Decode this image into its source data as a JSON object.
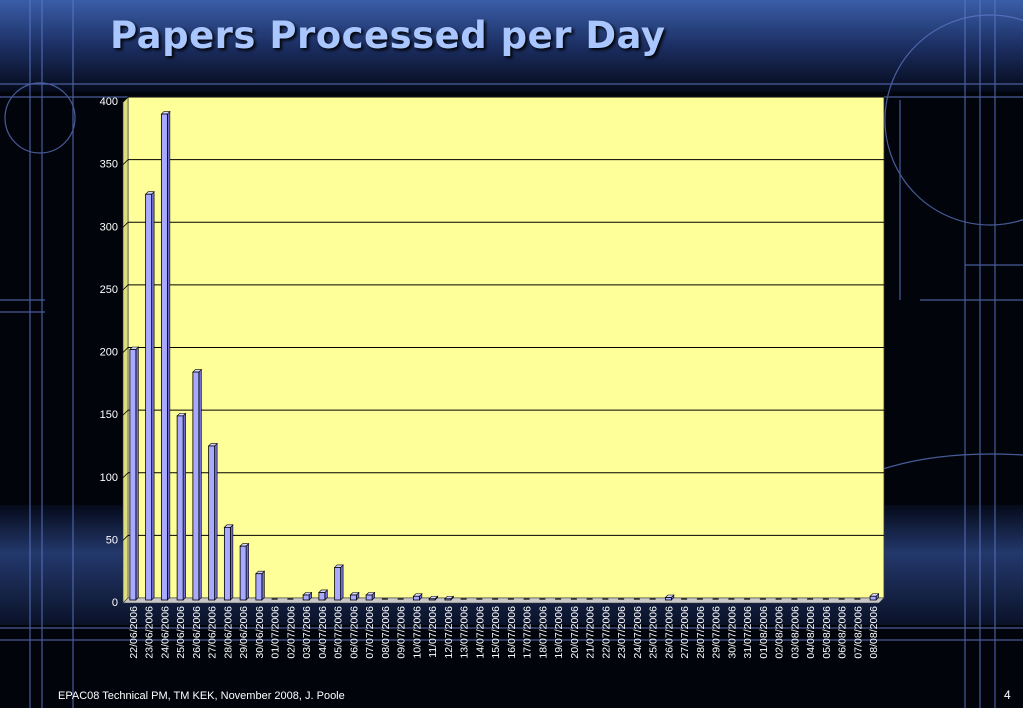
{
  "slide": {
    "title": "Papers Processed per Day",
    "footer": "EPAC08 Technical PM, TM KEK, November 2008, J. Poole",
    "page_number": "4"
  },
  "colors": {
    "plot_background": "#ffff99",
    "bar_front": "#a9a9ff",
    "bar_side": "#6f6fd0",
    "bar_top": "#d4d4ff",
    "gridline": "#000000",
    "axis_text": "#ffffff",
    "title": "#a9c6ff"
  },
  "chart_data": {
    "type": "bar",
    "title": "",
    "xlabel": "",
    "ylabel": "",
    "ylim": [
      0,
      400
    ],
    "yticks": [
      0,
      50,
      100,
      150,
      200,
      250,
      300,
      350,
      400
    ],
    "grid": true,
    "legend": "none",
    "categories": [
      "22/06/2006",
      "23/06/2006",
      "24/06/2006",
      "25/06/2006",
      "26/06/2006",
      "27/06/2006",
      "28/06/2006",
      "29/06/2006",
      "30/06/2006",
      "01/07/2006",
      "02/07/2006",
      "03/07/2006",
      "04/07/2006",
      "05/07/2006",
      "06/07/2006",
      "07/07/2006",
      "08/07/2006",
      "09/07/2006",
      "10/07/2006",
      "11/07/2006",
      "12/07/2006",
      "13/07/2006",
      "14/07/2006",
      "15/07/2006",
      "16/07/2006",
      "17/07/2006",
      "18/07/2006",
      "19/07/2006",
      "20/07/2006",
      "21/07/2006",
      "22/07/2006",
      "23/07/2006",
      "24/07/2006",
      "25/07/2006",
      "26/07/2006",
      "27/07/2006",
      "28/07/2006",
      "29/07/2006",
      "30/07/2006",
      "31/07/2006",
      "01/08/2006",
      "02/08/2006",
      "03/08/2006",
      "04/08/2006",
      "05/08/2006",
      "06/08/2006",
      "07/08/2006",
      "08/08/2006"
    ],
    "values": [
      200,
      324,
      388,
      147,
      182,
      123,
      58,
      43,
      21,
      0,
      0,
      4,
      6,
      26,
      4,
      4,
      0,
      0,
      3,
      1,
      1,
      0,
      0,
      0,
      0,
      0,
      0,
      0,
      0,
      0,
      0,
      0,
      0,
      0,
      2,
      0,
      0,
      0,
      0,
      0,
      0,
      0,
      0,
      0,
      0,
      0,
      0,
      3
    ]
  }
}
